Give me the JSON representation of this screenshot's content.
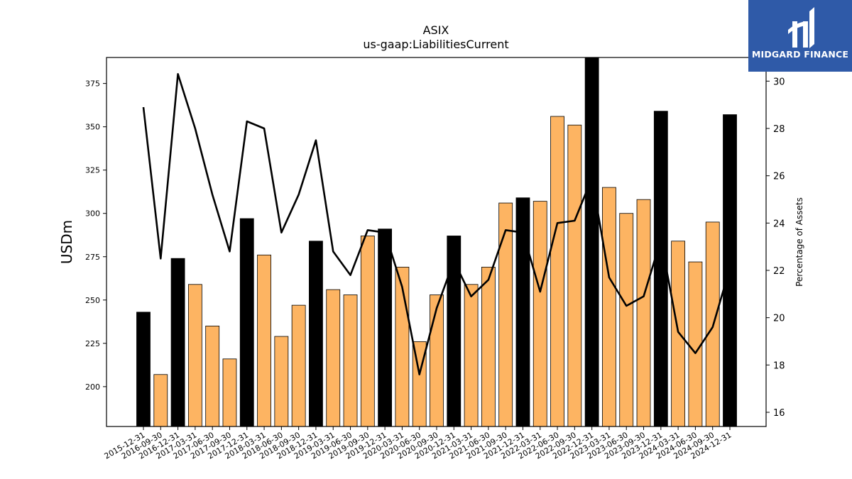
{
  "chart_data": {
    "type": "bar",
    "title": "ASIX",
    "subtitle": "us-gaap:LiabilitiesCurrent",
    "ylabel": "USDm",
    "y2label": "Percentage of Assets",
    "ylim": [
      177,
      390
    ],
    "y2lim": [
      15.4,
      31.0
    ],
    "yticks": [
      200,
      225,
      250,
      275,
      300,
      325,
      350,
      375
    ],
    "y2ticks": [
      16,
      18,
      20,
      22,
      24,
      26,
      28,
      30
    ],
    "categories": [
      "2015-12-31",
      "2016-09-30",
      "2016-12-31",
      "2017-03-31",
      "2017-06-30",
      "2017-09-30",
      "2017-12-31",
      "2018-03-31",
      "2018-06-30",
      "2018-09-30",
      "2018-12-31",
      "2019-03-31",
      "2019-06-30",
      "2019-09-30",
      "2019-12-31",
      "2020-03-31",
      "2020-06-30",
      "2020-09-30",
      "2020-12-31",
      "2021-03-31",
      "2021-06-30",
      "2021-09-30",
      "2021-12-31",
      "2022-03-31",
      "2022-06-30",
      "2022-09-30",
      "2022-12-31",
      "2023-03-31",
      "2023-06-30",
      "2023-09-30",
      "2023-12-31",
      "2024-03-31",
      "2024-06-30",
      "2024-09-30",
      "2024-12-31"
    ],
    "series": [
      {
        "values": [
          243,
          207,
          274,
          259,
          235,
          216,
          297,
          276,
          229,
          247,
          284,
          256,
          253,
          287,
          291,
          269,
          226,
          253,
          287,
          259,
          269,
          306,
          309,
          307,
          356,
          351,
          392,
          315,
          300,
          308,
          359,
          284,
          272,
          295,
          357
        ],
        "highlight": [
          true,
          false,
          true,
          false,
          false,
          false,
          true,
          false,
          false,
          false,
          true,
          false,
          false,
          false,
          true,
          false,
          false,
          false,
          true,
          false,
          false,
          false,
          true,
          false,
          false,
          false,
          true,
          false,
          false,
          false,
          true,
          false,
          false,
          false,
          true
        ],
        "colors": {
          "year_end": "#000000",
          "quarter": "#fdb462"
        }
      },
      {
        "type": "line",
        "axis": "right",
        "values": [
          28.9,
          22.5,
          30.3,
          28.0,
          25.2,
          22.8,
          28.3,
          28.0,
          23.6,
          25.2,
          27.5,
          22.8,
          21.8,
          23.7,
          23.6,
          21.3,
          17.6,
          20.4,
          22.4,
          20.9,
          21.6,
          23.7,
          23.6,
          21.1,
          24.0,
          24.1,
          25.9,
          21.7,
          20.5,
          20.9,
          23.3,
          19.4,
          18.5,
          19.6,
          22.1
        ],
        "color": "#000000"
      }
    ]
  },
  "logo": {
    "text": "MIDGARD FINANCE"
  }
}
